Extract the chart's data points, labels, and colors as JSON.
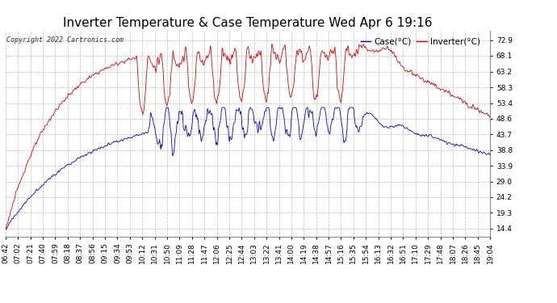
{
  "title": "Inverter Temperature & Case Temperature Wed Apr 6 19:16",
  "copyright": "Copyright 2022 Cartronics.com",
  "legend_case": "Case(°C)",
  "legend_inverter": "Inverter(°C)",
  "yticks": [
    14.4,
    19.3,
    24.2,
    29.0,
    33.9,
    38.8,
    43.7,
    48.6,
    53.4,
    58.3,
    63.2,
    68.1,
    72.9
  ],
  "ymin": 12.0,
  "ymax": 76.0,
  "background_color": "#ffffff",
  "plot_bg_color": "#ffffff",
  "grid_color": "#bbbbbb",
  "title_fontsize": 11,
  "tick_fontsize": 6.5,
  "inverter_color": "#dd0000",
  "case_color": "#0000dd",
  "xtick_labels": [
    "06:42",
    "07:02",
    "07:21",
    "07:40",
    "07:59",
    "08:18",
    "08:37",
    "08:56",
    "09:15",
    "09:34",
    "09:53",
    "10:12",
    "10:31",
    "10:50",
    "11:09",
    "11:28",
    "11:47",
    "12:06",
    "12:25",
    "12:44",
    "13:03",
    "13:22",
    "13:41",
    "14:00",
    "14:19",
    "14:38",
    "14:57",
    "15:16",
    "15:35",
    "15:54",
    "16:13",
    "16:32",
    "16:51",
    "17:10",
    "17:29",
    "17:48",
    "18:07",
    "18:26",
    "18:45",
    "19:04"
  ]
}
